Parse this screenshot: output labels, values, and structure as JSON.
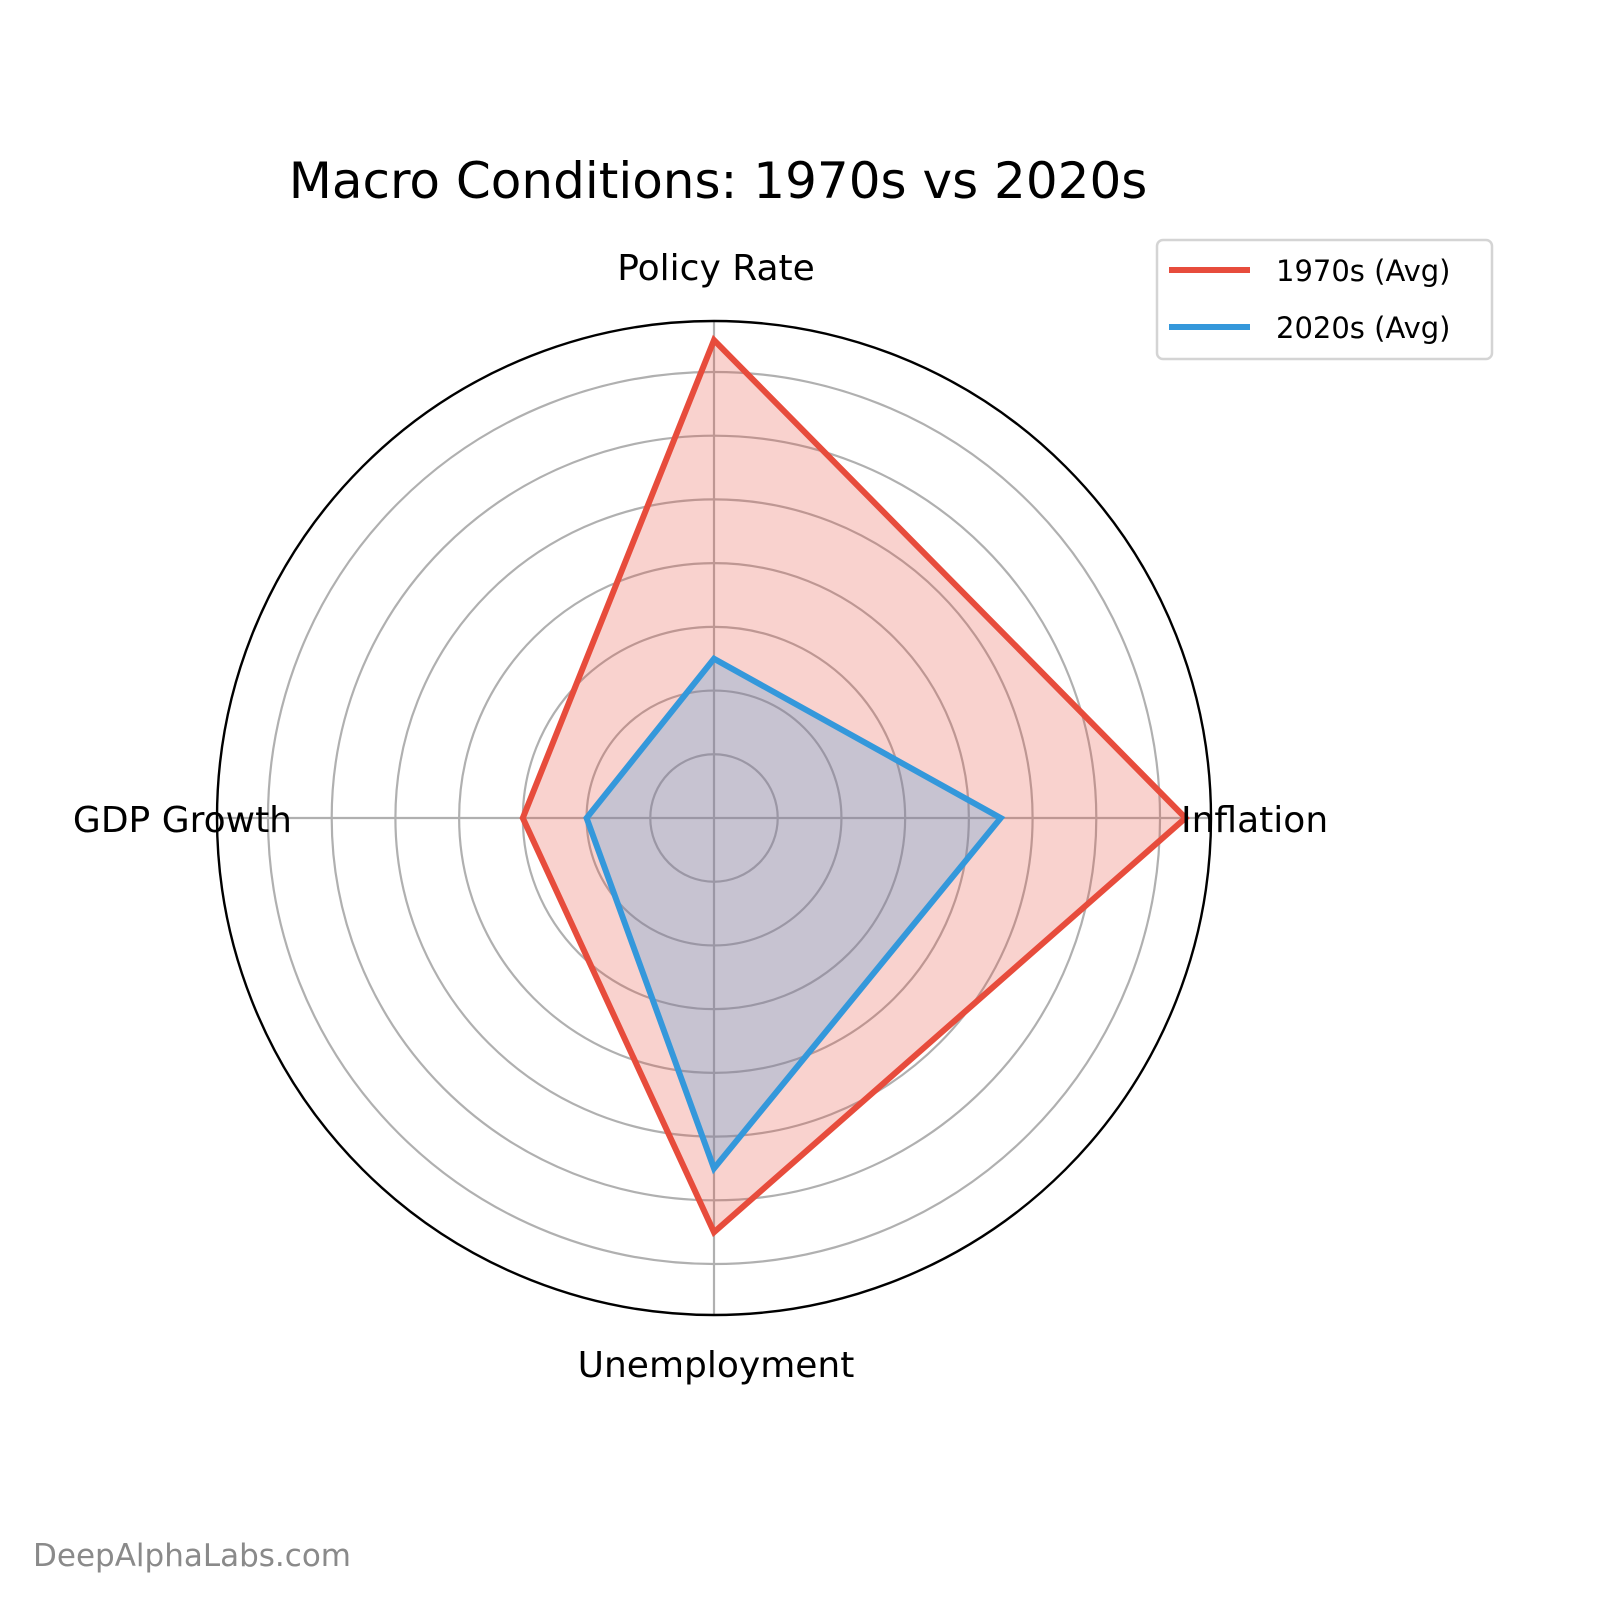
{
  "chart_data": {
    "type": "radar",
    "title": "Macro Conditions: 1970s vs 2020s",
    "categories": [
      "Inflation",
      "Policy Rate",
      "GDP Growth",
      "Unemployment"
    ],
    "series": [
      {
        "name": "1970s (Avg)",
        "color": "#e74c3c",
        "values": [
          7.4,
          7.5,
          3.0,
          6.5
        ]
      },
      {
        "name": "2020s (Avg)",
        "color": "#3498db",
        "values": [
          4.5,
          2.5,
          2.0,
          5.5
        ]
      }
    ],
    "rlim": [
      0,
      7.8
    ],
    "rgrid": [
      1,
      2,
      3,
      4,
      5,
      6,
      7
    ],
    "grid": true,
    "fill_alpha": 0.25,
    "legend_position": "top-right"
  },
  "watermark": "DeepAlphaLabs.com"
}
